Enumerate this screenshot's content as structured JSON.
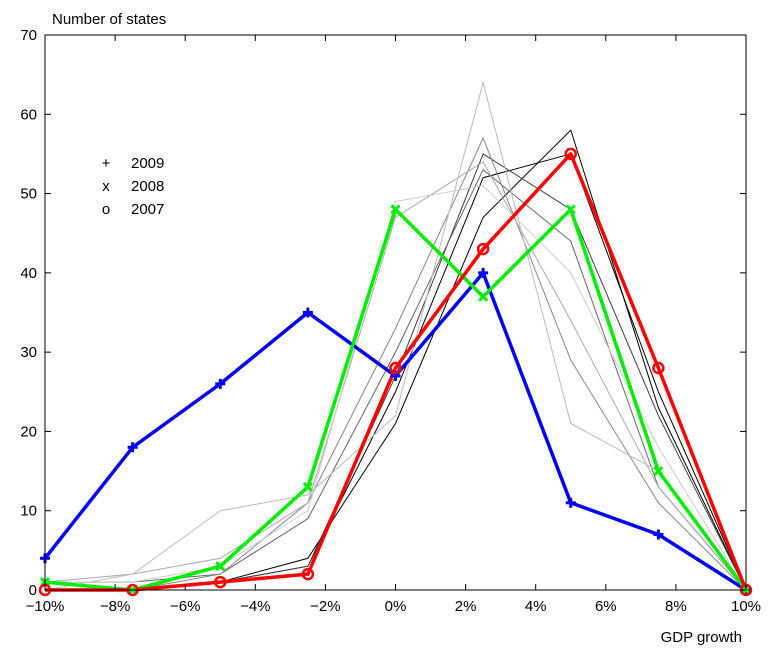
{
  "chart_data": {
    "type": "line",
    "xlabel": "GDP growth",
    "ylabel": "Number of states",
    "xlim": [
      -10,
      10
    ],
    "ylim": [
      0,
      70
    ],
    "x": [
      -10,
      -7.5,
      -5,
      -2.5,
      0,
      2.5,
      5,
      7.5,
      10
    ],
    "x_tick_values": [
      -10,
      -8,
      -6,
      -4,
      -2,
      0,
      2,
      4,
      6,
      8,
      10
    ],
    "x_tick_labels": [
      "−10%",
      "−8%",
      "−6%",
      "−4%",
      "−2%",
      "0%",
      "2%",
      "4%",
      "6%",
      "8%",
      "10%"
    ],
    "y_tick_values": [
      0,
      10,
      20,
      30,
      40,
      50,
      60,
      70
    ],
    "y_tick_labels": [
      "0",
      "10",
      "20",
      "30",
      "40",
      "50",
      "60",
      "70"
    ],
    "grid": false,
    "legend": {
      "placement": "upper-left",
      "entries": [
        {
          "marker": "+",
          "label": "2009"
        },
        {
          "marker": "x",
          "label": "2008"
        },
        {
          "marker": "o",
          "label": "2007"
        }
      ]
    },
    "series": [
      {
        "year": "2009",
        "marker": "+",
        "color": "#0000ff",
        "values": [
          4,
          18,
          26,
          35,
          27,
          40,
          11,
          7,
          0
        ]
      },
      {
        "year": "2008",
        "marker": "x",
        "color": "#00ee00",
        "values": [
          1,
          0,
          3,
          13,
          48,
          37,
          48,
          15,
          0
        ]
      },
      {
        "year": "2007",
        "marker": "o",
        "color": "#ff0000",
        "values": [
          0,
          0,
          1,
          2,
          28,
          43,
          55,
          28,
          0
        ]
      }
    ],
    "background_series": [
      {
        "color": "#000000",
        "values": [
          1,
          0,
          1,
          4,
          21,
          47,
          58,
          23,
          0
        ]
      },
      {
        "color": "#000000",
        "values": [
          1,
          0,
          1,
          3,
          25,
          52,
          55,
          25,
          0
        ]
      },
      {
        "color": "#404040",
        "values": [
          1,
          0,
          1,
          3,
          27,
          55,
          48,
          22,
          0
        ]
      },
      {
        "color": "#666666",
        "values": [
          1,
          1,
          2,
          9,
          30,
          53,
          44,
          13,
          0
        ]
      },
      {
        "color": "#888888",
        "values": [
          0,
          0,
          2,
          11,
          33,
          57,
          29,
          11,
          0
        ]
      },
      {
        "color": "#aaaaaa",
        "values": [
          1,
          2,
          4,
          11,
          47,
          54,
          34,
          13,
          0
        ]
      },
      {
        "color": "#bbbbbb",
        "values": [
          0,
          2,
          10,
          12,
          22,
          64,
          21,
          15,
          0
        ]
      },
      {
        "color": "#cccccc",
        "values": [
          1,
          1,
          3,
          10,
          49,
          51,
          40,
          18,
          0
        ]
      }
    ]
  }
}
